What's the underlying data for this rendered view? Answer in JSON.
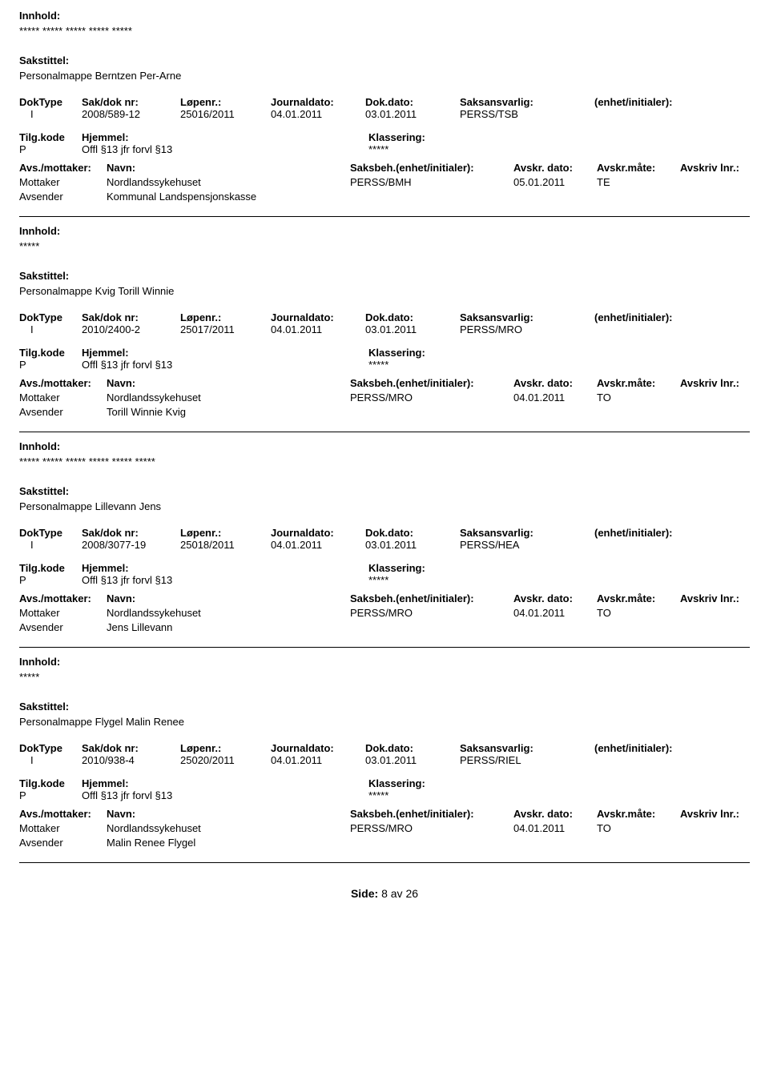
{
  "labels": {
    "innhold": "Innhold:",
    "sakstittel": "Sakstittel:",
    "doktype": "DokType",
    "sakdoknr": "Sak/dok nr:",
    "lopenr": "Løpenr.:",
    "journaldato": "Journaldato:",
    "dokdato": "Dok.dato:",
    "saksansvarlig": "Saksansvarlig:",
    "enhet": "(enhet/initialer):",
    "tilgkode": "Tilg.kode",
    "hjemmel": "Hjemmel:",
    "klassering": "Klassering:",
    "avsmottaker": "Avs./mottaker:",
    "navn": "Navn:",
    "saksbeh": "Saksbeh.(enhet/initialer):",
    "avskrdato": "Avskr. dato:",
    "avskrmate": "Avskr.måte:",
    "avskrivlnr": "Avskriv lnr.:",
    "mottaker": "Mottaker",
    "avsender": "Avsender",
    "side": "Side:",
    "av": "av"
  },
  "records": [
    {
      "innhold": "***** ***** ***** ***** *****",
      "sakstittel": "Personalmappe Berntzen Per-Arne",
      "doktype": "I",
      "sakdoknr": "2008/589-12",
      "lopenr": "25016/2011",
      "journaldato": "04.01.2011",
      "dokdato": "03.01.2011",
      "saksansvarlig": "PERSS/TSB",
      "tilgkode": "P",
      "hjemmel": "Offl §13 jfr forvl §13",
      "klassering": "*****",
      "parties": [
        {
          "role": "Mottaker",
          "navn": "Nordlandssykehuset",
          "saksbeh": "PERSS/BMH",
          "avskrdato": "05.01.2011",
          "avskrmate": "TE"
        },
        {
          "role": "Avsender",
          "navn": "Kommunal Landspensjonskasse",
          "saksbeh": "",
          "avskrdato": "",
          "avskrmate": ""
        }
      ]
    },
    {
      "innhold": "*****",
      "sakstittel": "Personalmappe Kvig Torill Winnie",
      "doktype": "I",
      "sakdoknr": "2010/2400-2",
      "lopenr": "25017/2011",
      "journaldato": "04.01.2011",
      "dokdato": "03.01.2011",
      "saksansvarlig": "PERSS/MRO",
      "tilgkode": "P",
      "hjemmel": "Offl §13 jfr forvl §13",
      "klassering": "*****",
      "parties": [
        {
          "role": "Mottaker",
          "navn": "Nordlandssykehuset",
          "saksbeh": "PERSS/MRO",
          "avskrdato": "04.01.2011",
          "avskrmate": "TO"
        },
        {
          "role": "Avsender",
          "navn": "Torill Winnie Kvig",
          "saksbeh": "",
          "avskrdato": "",
          "avskrmate": ""
        }
      ]
    },
    {
      "innhold": "***** ***** ***** ***** ***** *****",
      "sakstittel": "Personalmappe Lillevann Jens",
      "doktype": "I",
      "sakdoknr": "2008/3077-19",
      "lopenr": "25018/2011",
      "journaldato": "04.01.2011",
      "dokdato": "03.01.2011",
      "saksansvarlig": "PERSS/HEA",
      "tilgkode": "P",
      "hjemmel": "Offl §13 jfr forvl §13",
      "klassering": "*****",
      "parties": [
        {
          "role": "Mottaker",
          "navn": "Nordlandssykehuset",
          "saksbeh": "PERSS/MRO",
          "avskrdato": "04.01.2011",
          "avskrmate": "TO"
        },
        {
          "role": "Avsender",
          "navn": "Jens Lillevann",
          "saksbeh": "",
          "avskrdato": "",
          "avskrmate": ""
        }
      ]
    },
    {
      "innhold": "*****",
      "sakstittel": "Personalmappe Flygel Malin Renee",
      "doktype": "I",
      "sakdoknr": "2010/938-4",
      "lopenr": "25020/2011",
      "journaldato": "04.01.2011",
      "dokdato": "03.01.2011",
      "saksansvarlig": "PERSS/RIEL",
      "tilgkode": "P",
      "hjemmel": "Offl §13 jfr forvl §13",
      "klassering": "*****",
      "parties": [
        {
          "role": "Mottaker",
          "navn": "Nordlandssykehuset",
          "saksbeh": "PERSS/MRO",
          "avskrdato": "04.01.2011",
          "avskrmate": "TO"
        },
        {
          "role": "Avsender",
          "navn": "Malin Renee Flygel",
          "saksbeh": "",
          "avskrdato": "",
          "avskrmate": ""
        }
      ]
    }
  ],
  "footer": {
    "page": "8",
    "total": "26"
  }
}
